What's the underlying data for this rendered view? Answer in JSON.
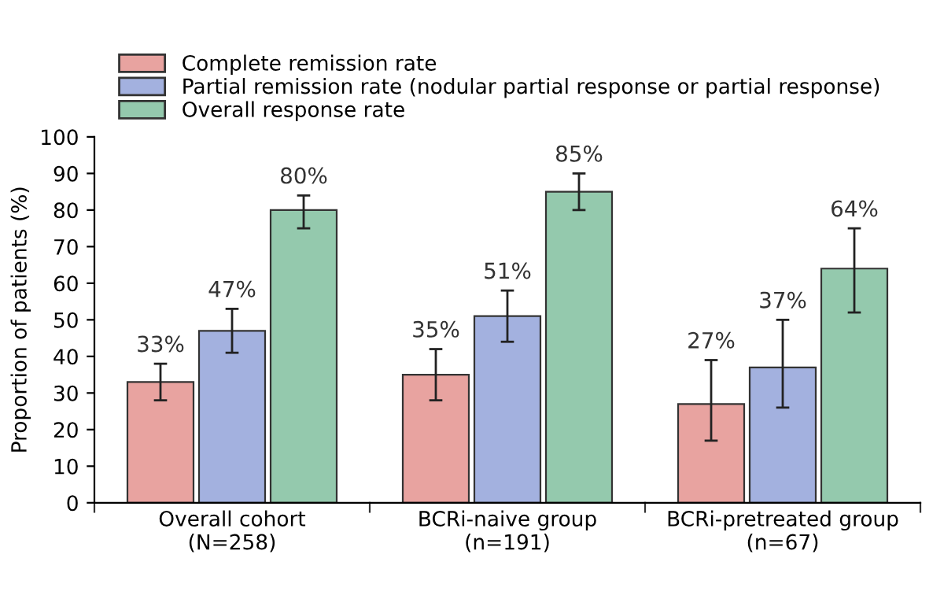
{
  "chart_data": {
    "type": "bar",
    "ylabel": "Proportion of patients (%)",
    "categories": [
      "Overall cohort\n(N=258)",
      "BCRi-naive group\n(n=191)",
      "BCRi-pretreated group\n(n=67)"
    ],
    "series": [
      {
        "name": "Complete remission rate",
        "color": "#e8a3a0",
        "values": [
          33,
          35,
          27
        ],
        "errors": [
          [
            28,
            38
          ],
          [
            28,
            42
          ],
          [
            17,
            39
          ]
        ],
        "value_labels": [
          "33%",
          "35%",
          "27%"
        ]
      },
      {
        "name": "Partial remission rate (nodular partial response or partial response)",
        "color": "#a3b1df",
        "values": [
          47,
          51,
          37
        ],
        "errors": [
          [
            41,
            53
          ],
          [
            44,
            58
          ],
          [
            26,
            50
          ]
        ],
        "value_labels": [
          "47%",
          "51%",
          "37%"
        ]
      },
      {
        "name": "Overall response rate",
        "color": "#94c9ad",
        "values": [
          80,
          85,
          64
        ],
        "errors": [
          [
            75,
            84
          ],
          [
            80,
            90
          ],
          [
            52,
            75
          ]
        ],
        "value_labels": [
          "80%",
          "85%",
          "64%"
        ]
      }
    ],
    "ylim": [
      0,
      100
    ],
    "yticks": [
      0,
      10,
      20,
      30,
      40,
      50,
      60,
      70,
      80,
      90,
      100
    ],
    "grid": false,
    "legend": "top left"
  }
}
